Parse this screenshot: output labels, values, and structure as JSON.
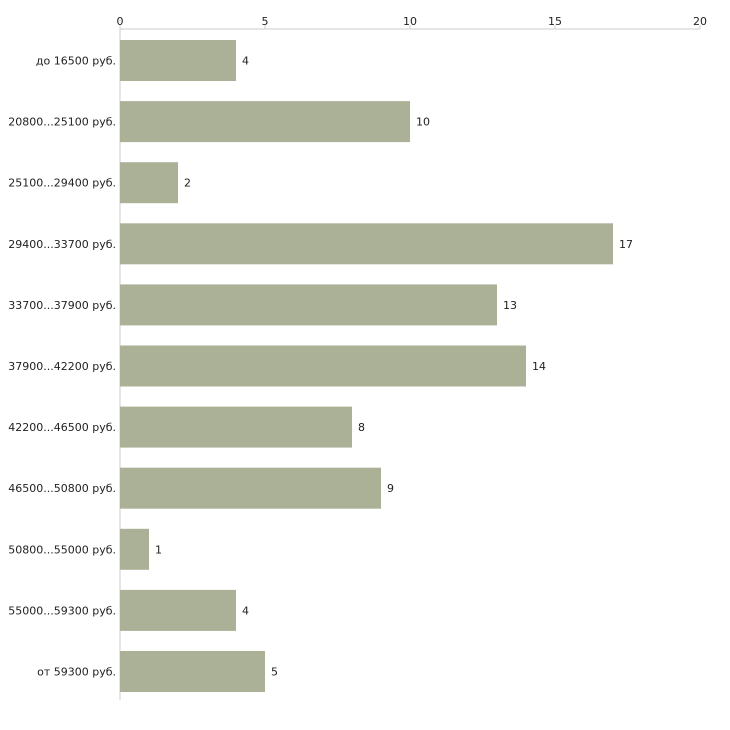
{
  "chart_data": {
    "type": "bar",
    "orientation": "horizontal",
    "title": "",
    "xlabel": "",
    "ylabel": "",
    "xlim": [
      0,
      20
    ],
    "ticks": [
      0,
      5,
      10,
      15,
      20
    ],
    "grid": false,
    "categories": [
      "до 16500 руб.",
      "20800...25100 руб.",
      "25100...29400 руб.",
      "29400...33700 руб.",
      "33700...37900 руб.",
      "37900...42200 руб.",
      "42200...46500 руб.",
      "46500...50800 руб.",
      "50800...55000 руб.",
      "55000...59300 руб.",
      "от 59300 руб."
    ],
    "values": [
      4,
      10,
      2,
      17,
      13,
      14,
      8,
      9,
      1,
      4,
      5
    ],
    "bar_color": "#abb197",
    "axis_color": "#cccccc"
  }
}
